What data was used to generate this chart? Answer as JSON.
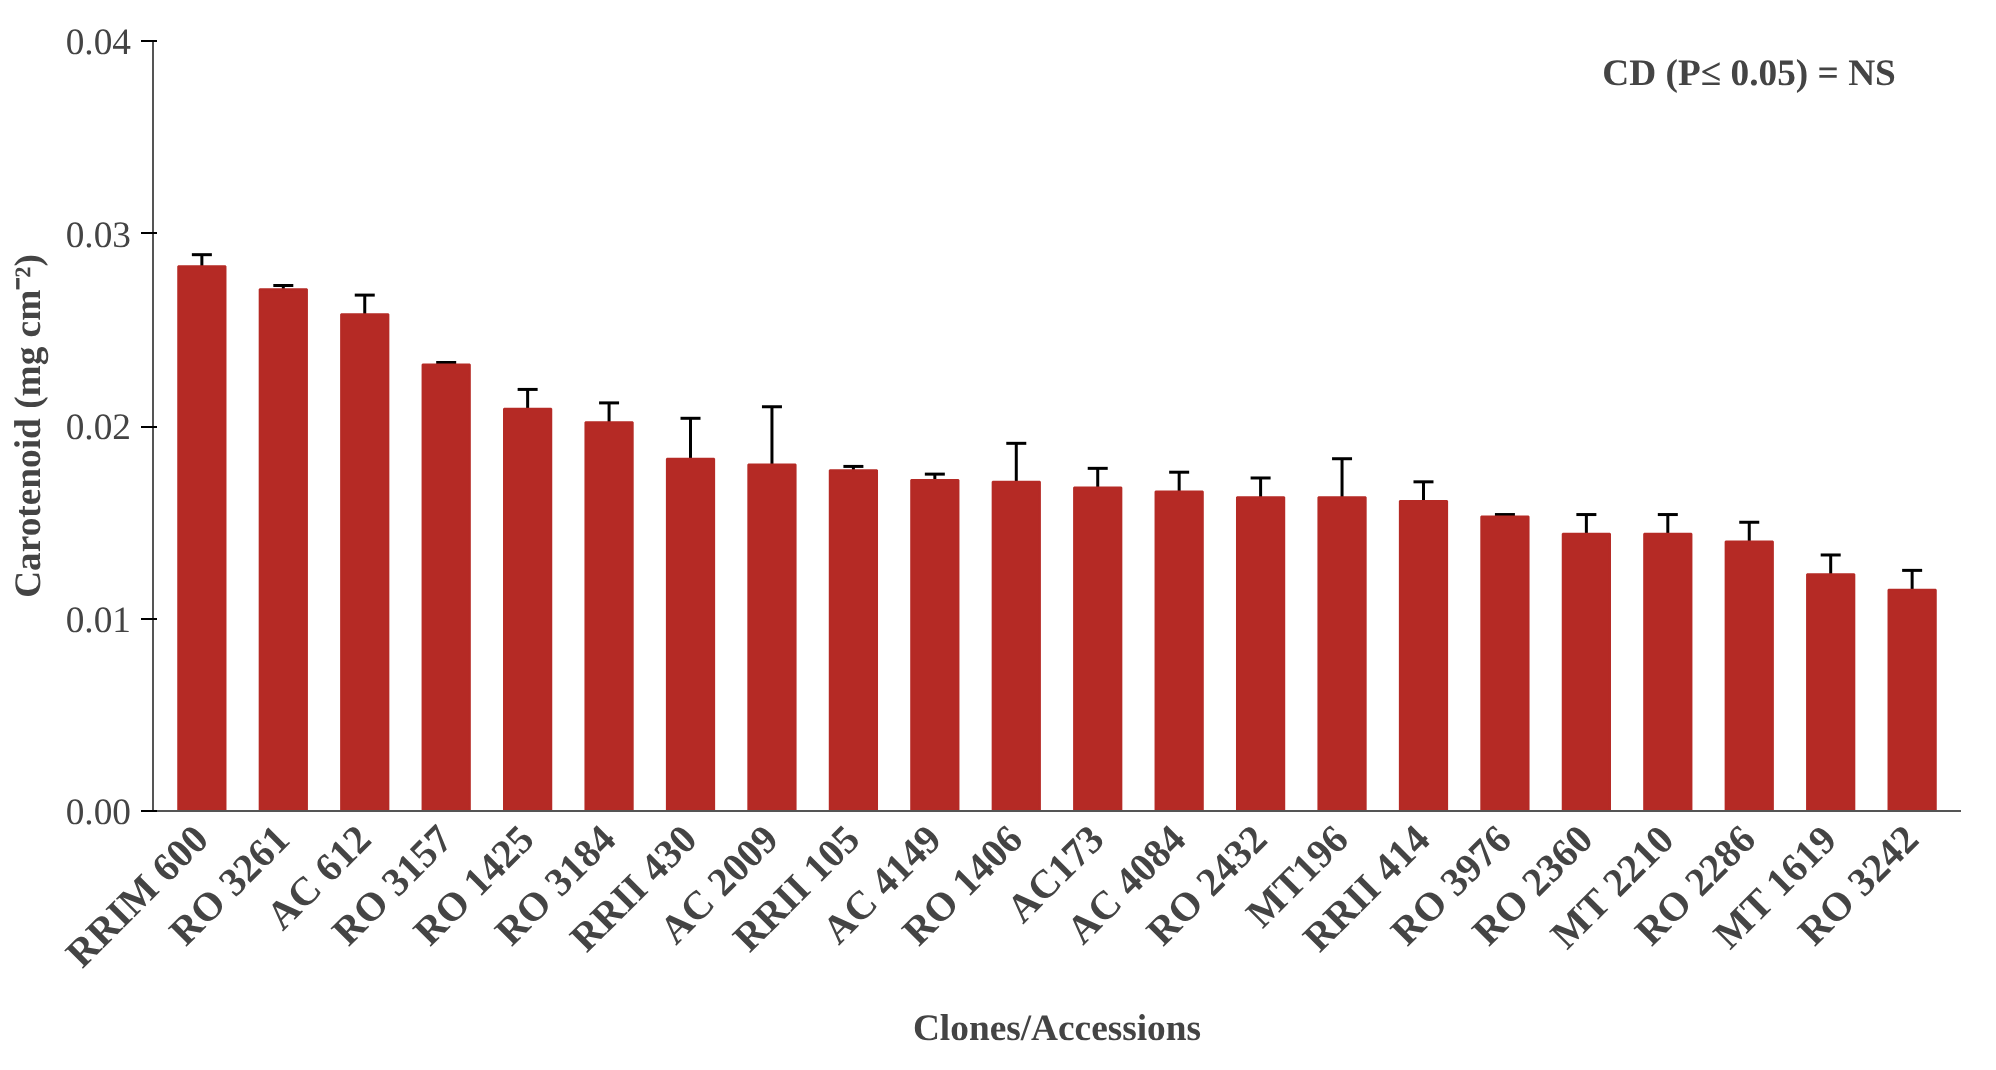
{
  "chart_data": {
    "type": "bar",
    "xlabel": "Clones/Accessions",
    "ylabel": "Carotenoid (mg cm⁻²)",
    "categories": [
      "RRIM 600",
      "RO 3261",
      "AC 612",
      "RO 3157",
      "RO 1425",
      "RO 3184",
      "RRII 430",
      "AC 2009",
      "RRII 105",
      "AC 4149",
      "RO 1406",
      "AC173",
      "AC 4084",
      "RO 2432",
      "MT196",
      "RRII 414",
      "RO 3976",
      "RO 2360",
      "MT 2210",
      "RO 2286",
      "MT 1619",
      "RO 3242"
    ],
    "values": [
      0.0283,
      0.0271,
      0.0258,
      0.0232,
      0.0209,
      0.0202,
      0.0183,
      0.018,
      0.0177,
      0.0172,
      0.0171,
      0.0168,
      0.0166,
      0.0163,
      0.0163,
      0.0161,
      0.0153,
      0.0144,
      0.0144,
      0.014,
      0.0123,
      0.0115
    ],
    "errors": [
      0.0006,
      0.0002,
      0.001,
      0.0001,
      0.001,
      0.001,
      0.0021,
      0.003,
      0.0002,
      0.0003,
      0.002,
      0.001,
      0.001,
      0.001,
      0.002,
      0.001,
      0.0001,
      0.001,
      0.001,
      0.001,
      0.001,
      0.001
    ],
    "color": "#b52a25",
    "ylim": [
      0,
      0.04
    ],
    "yticks": [
      {
        "value": 0,
        "label": "0.00"
      },
      {
        "value": 0.01,
        "label": "0.01"
      },
      {
        "value": 0.02,
        "label": "0.02"
      },
      {
        "value": 0.03,
        "label": "0.03"
      },
      {
        "value": 0.04,
        "label": "0.04"
      }
    ],
    "grid": false,
    "annotations": [
      "CD (P≤ 0.05) = NS"
    ]
  }
}
